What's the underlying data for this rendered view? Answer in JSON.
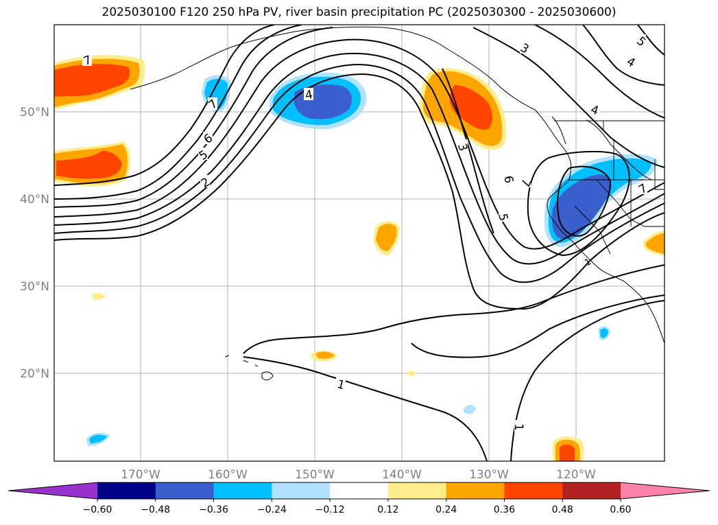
{
  "title": "2025030100 F120 250 hPa PV, river basin precipitation PC (2025030300 - 2025030600)",
  "map": {
    "lat_labels": [
      "50°N",
      "40°N",
      "30°N",
      "20°N"
    ],
    "lon_labels": [
      "170°W",
      "160°W",
      "150°W",
      "140°W",
      "130°W",
      "120°W"
    ],
    "contour_labels": [
      "1",
      "1",
      "1",
      "2",
      "3",
      "3",
      "4",
      "4",
      "4",
      "5",
      "5",
      "5",
      "6",
      "6",
      "7",
      "7",
      "7",
      "7"
    ]
  },
  "colorbar": {
    "ticks": [
      "−0.60",
      "−0.48",
      "−0.36",
      "−0.24",
      "−0.12",
      "0.12",
      "0.24",
      "0.36",
      "0.48",
      "0.60"
    ],
    "colors": [
      "#9932cc",
      "#00008b",
      "#3a5fcd",
      "#00bfff",
      "#b0e2ff",
      "#ffffff",
      "#ffec8b",
      "#ffa500",
      "#ff4500",
      "#b22222",
      "#ff82ab"
    ]
  }
}
